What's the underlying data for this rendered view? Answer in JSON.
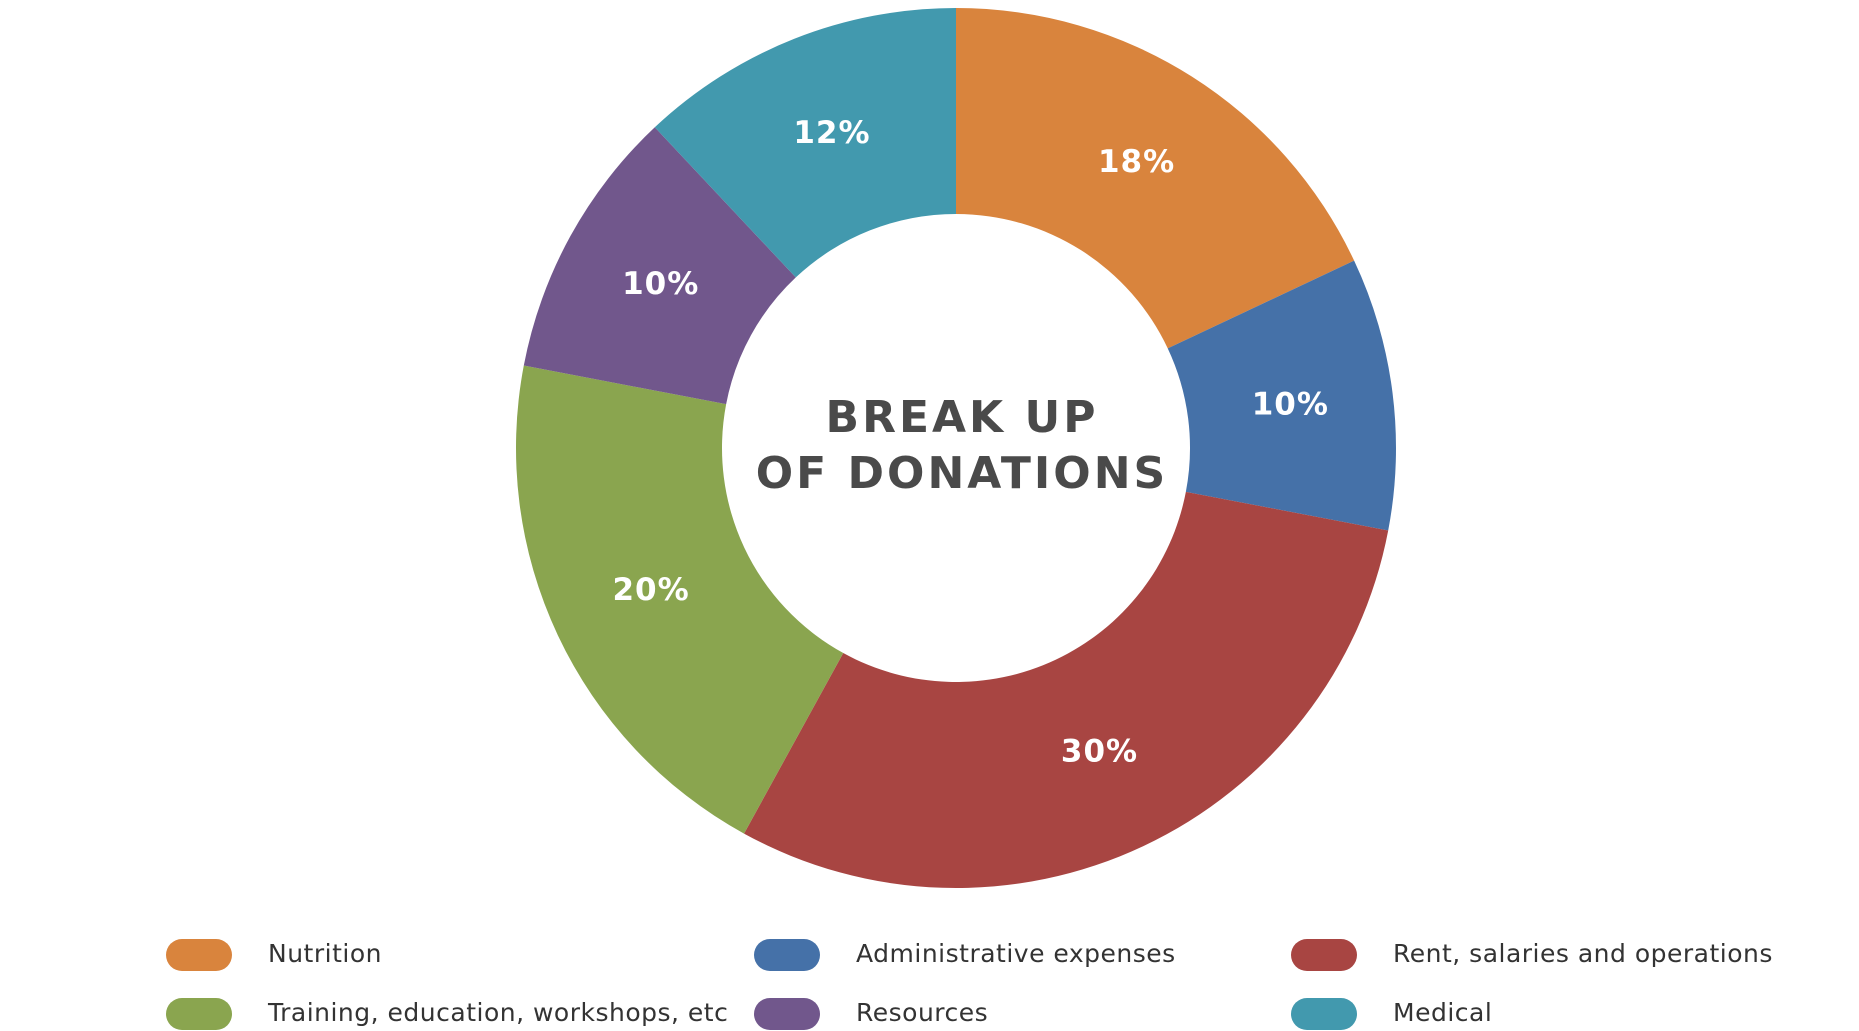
{
  "chart_data": {
    "type": "donut",
    "title": [
      "BREAK UP",
      "OF DONATIONS"
    ],
    "categories": [
      "Nutrition",
      "Administrative expenses",
      "Rent, salaries and operations",
      "Training, education, workshops, etc",
      "Resources",
      "Medical"
    ],
    "values": [
      18,
      10,
      30,
      20,
      10,
      12
    ],
    "value_labels": [
      "18%",
      "10%",
      "30%",
      "20%",
      "10%",
      "12%"
    ],
    "colors": [
      "#d9843d",
      "#4571a8",
      "#a84542",
      "#8aa54f",
      "#71578c",
      "#4299ae"
    ]
  }
}
